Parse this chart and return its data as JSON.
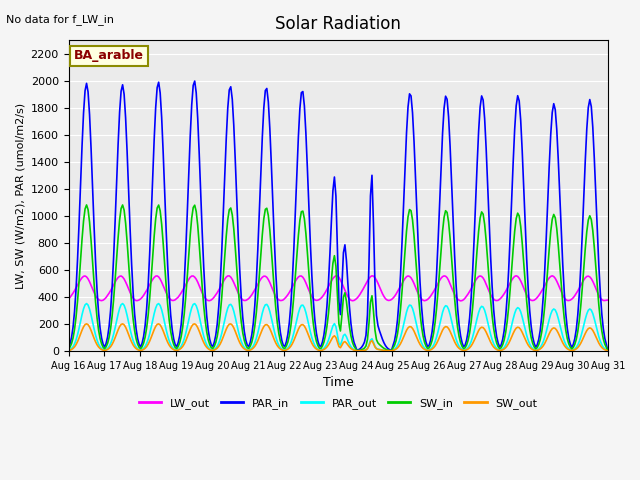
{
  "title": "Solar Radiation",
  "xlabel": "Time",
  "ylabel": "LW, SW (W/m2), PAR (umol/m2/s)",
  "note": "No data for f_LW_in",
  "legend_label": "BA_arable",
  "ylim": [
    0,
    2300
  ],
  "yticks": [
    0,
    200,
    400,
    600,
    800,
    1000,
    1200,
    1400,
    1600,
    1800,
    2000,
    2200
  ],
  "xticklabels": [
    "Aug 16",
    "Aug 17",
    "Aug 18",
    "Aug 19",
    "Aug 20",
    "Aug 21",
    "Aug 22",
    "Aug 23",
    "Aug 24",
    "Aug 25",
    "Aug 26",
    "Aug 27",
    "Aug 28",
    "Aug 29",
    "Aug 30",
    "Aug 31"
  ],
  "series": {
    "LW_out": {
      "color": "#ff00ff",
      "lw": 1.2
    },
    "PAR_in": {
      "color": "#0000ff",
      "lw": 1.2
    },
    "PAR_out": {
      "color": "#00ffff",
      "lw": 1.2
    },
    "SW_in": {
      "color": "#00cc00",
      "lw": 1.2
    },
    "SW_out": {
      "color": "#ff9900",
      "lw": 1.2
    }
  },
  "bg_color": "#e8e8e8",
  "plot_bg": "#f0f0f0"
}
